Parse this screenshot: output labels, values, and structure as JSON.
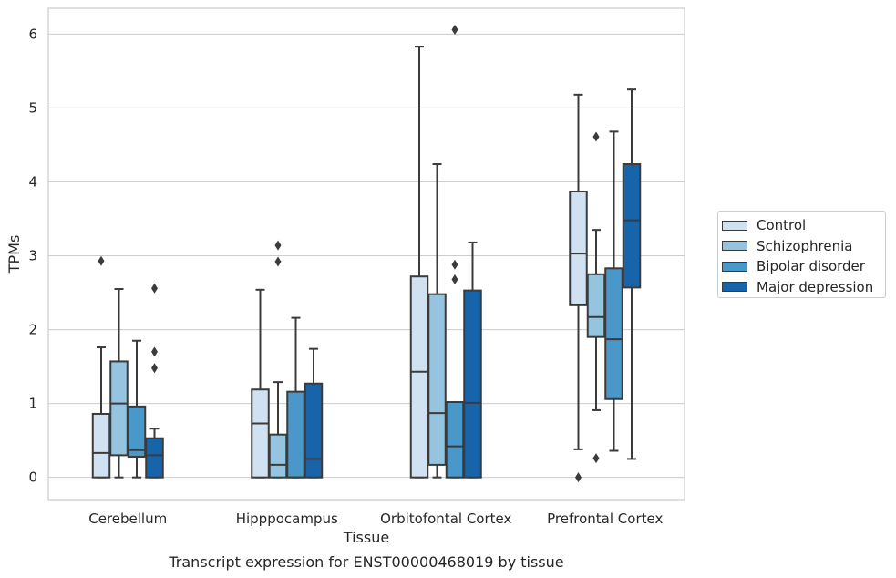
{
  "chart_data": {
    "type": "box",
    "title": "",
    "caption": "Transcript expression for ENST00000468019 by tissue",
    "xlabel": "Tissue",
    "ylabel": "TPMs",
    "ylim": [
      -0.3,
      6.35
    ],
    "yticks": [
      0,
      1,
      2,
      3,
      4,
      5,
      6
    ],
    "grid": "horizontal",
    "legend_position": "right",
    "categories": [
      "Cerebellum",
      "Hipppocampus",
      "Orbitofontal Cortex",
      "Prefrontal Cortex"
    ],
    "series": [
      {
        "name": "Control",
        "color": "#d0e1f2",
        "boxes": [
          {
            "whislo": 0,
            "q1": 0,
            "med": 0.33,
            "q3": 0.86,
            "whishi": 1.76,
            "fliers": [
              2.93
            ]
          },
          {
            "whislo": 0,
            "q1": 0,
            "med": 0.73,
            "q3": 1.19,
            "whishi": 2.54,
            "fliers": []
          },
          {
            "whislo": 0,
            "q1": 0,
            "med": 1.43,
            "q3": 2.72,
            "whishi": 5.83,
            "fliers": []
          },
          {
            "whislo": 0.38,
            "q1": 2.33,
            "med": 3.03,
            "q3": 3.87,
            "whishi": 5.18,
            "fliers": [
              0
            ]
          }
        ]
      },
      {
        "name": "Schizophrenia",
        "color": "#94c4df",
        "boxes": [
          {
            "whislo": 0,
            "q1": 0.3,
            "med": 1.0,
            "q3": 1.57,
            "whishi": 2.55,
            "fliers": []
          },
          {
            "whislo": 0,
            "q1": 0,
            "med": 0.17,
            "q3": 0.58,
            "whishi": 1.29,
            "fliers": [
              2.92,
              3.14
            ]
          },
          {
            "whislo": 0,
            "q1": 0.17,
            "med": 0.87,
            "q3": 2.48,
            "whishi": 4.24,
            "fliers": []
          },
          {
            "whislo": 0.91,
            "q1": 1.9,
            "med": 2.17,
            "q3": 2.75,
            "whishi": 3.35,
            "fliers": [
              0.26,
              4.61
            ]
          }
        ]
      },
      {
        "name": "Bipolar disorder",
        "color": "#4a98c9",
        "boxes": [
          {
            "whislo": 0,
            "q1": 0.28,
            "med": 0.37,
            "q3": 0.96,
            "whishi": 1.85,
            "fliers": []
          },
          {
            "whislo": 0,
            "q1": 0,
            "med": 0,
            "q3": 1.16,
            "whishi": 2.16,
            "fliers": []
          },
          {
            "whislo": 0,
            "q1": 0,
            "med": 0.42,
            "q3": 1.02,
            "whishi": 1.02,
            "fliers": [
              2.68,
              2.88,
              6.06
            ]
          },
          {
            "whislo": 0.36,
            "q1": 1.06,
            "med": 1.87,
            "q3": 2.83,
            "whishi": 4.68,
            "fliers": []
          }
        ]
      },
      {
        "name": "Major depression",
        "color": "#1764ab",
        "boxes": [
          {
            "whislo": 0,
            "q1": 0,
            "med": 0.3,
            "q3": 0.53,
            "whishi": 0.66,
            "fliers": [
              1.48,
              1.7,
              2.56
            ]
          },
          {
            "whislo": 0,
            "q1": 0,
            "med": 0.25,
            "q3": 1.27,
            "whishi": 1.74,
            "fliers": []
          },
          {
            "whislo": 0,
            "q1": 0,
            "med": 1.01,
            "q3": 2.53,
            "whishi": 3.18,
            "fliers": []
          },
          {
            "whislo": 0.25,
            "q1": 2.57,
            "med": 3.48,
            "q3": 4.24,
            "whishi": 5.25,
            "fliers": []
          }
        ]
      }
    ]
  }
}
